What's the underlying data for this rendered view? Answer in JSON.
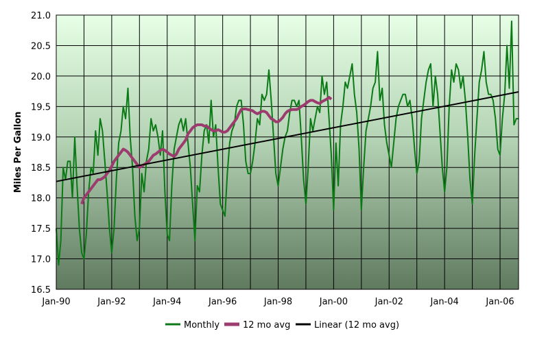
{
  "chart_data": {
    "type": "line",
    "title": "",
    "xlabel": "",
    "ylabel": "Miles Per Gallon",
    "ylim": [
      16.5,
      21.0
    ],
    "yticks": [
      "16.5",
      "17.0",
      "17.5",
      "18.0",
      "18.5",
      "19.0",
      "19.5",
      "20.0",
      "20.5",
      "21.0"
    ],
    "xlim": [
      "1990-01",
      "2006-09"
    ],
    "xticks": [
      "Jan-90",
      "Jan-92",
      "Jan-94",
      "Jan-96",
      "Jan-98",
      "Jan-00",
      "Jan-02",
      "Jan-04",
      "Jan-06"
    ],
    "grid": true,
    "legend_position": "bottom",
    "background": "vertical gradient from light green (top) to dark green (bottom)",
    "colors": {
      "monthly": "#0b7a16",
      "avg": "#9b3b6e",
      "linear": "#000000",
      "grid": "#000000",
      "bg_top": "#e6ffe6",
      "bg_bottom": "#5f7a5f"
    },
    "series": [
      {
        "name": "Monthly",
        "key": "monthly",
        "start": "1990-01",
        "values": [
          17.5,
          16.9,
          17.3,
          18.5,
          18.3,
          18.6,
          18.6,
          18.0,
          19.0,
          18.2,
          17.5,
          17.1,
          17.0,
          17.4,
          18.1,
          18.5,
          18.4,
          19.1,
          18.7,
          19.3,
          19.1,
          18.6,
          18.1,
          17.5,
          17.1,
          17.5,
          18.3,
          18.9,
          19.1,
          19.5,
          19.3,
          19.8,
          19.0,
          18.5,
          17.7,
          17.3,
          17.5,
          18.4,
          18.1,
          18.6,
          18.8,
          19.3,
          19.1,
          19.2,
          19.0,
          18.7,
          19.1,
          18.1,
          17.4,
          17.3,
          18.2,
          18.8,
          19.0,
          19.2,
          19.3,
          19.1,
          19.3,
          18.9,
          18.5,
          17.9,
          17.3,
          18.2,
          18.1,
          18.7,
          19.1,
          19.2,
          18.9,
          19.6,
          19.0,
          19.2,
          18.5,
          17.9,
          17.8,
          17.7,
          18.4,
          18.9,
          19.1,
          19.2,
          19.5,
          19.6,
          19.6,
          19.2,
          18.6,
          18.4,
          18.4,
          18.6,
          18.9,
          19.3,
          19.2,
          19.7,
          19.6,
          19.7,
          20.1,
          19.6,
          19.0,
          18.4,
          18.2,
          18.5,
          18.8,
          19.0,
          19.1,
          19.4,
          19.6,
          19.6,
          19.5,
          19.6,
          19.0,
          18.3,
          17.9,
          18.5,
          19.3,
          19.1,
          19.3,
          19.5,
          19.4,
          20.0,
          19.7,
          19.9,
          19.3,
          18.7,
          17.8,
          18.9,
          18.2,
          19.2,
          19.5,
          19.9,
          19.8,
          20.0,
          20.2,
          19.7,
          19.4,
          18.8,
          17.8,
          18.5,
          19.1,
          19.3,
          19.5,
          19.8,
          19.9,
          20.4,
          19.6,
          19.8,
          19.2,
          18.9,
          18.7,
          18.5,
          18.9,
          19.3,
          19.5,
          19.6,
          19.7,
          19.7,
          19.5,
          19.6,
          19.3,
          18.8,
          18.4,
          18.6,
          19.3,
          19.6,
          19.9,
          20.1,
          20.2,
          19.5,
          20.0,
          19.7,
          19.1,
          18.5,
          18.1,
          18.5,
          19.5,
          20.1,
          19.9,
          20.2,
          20.1,
          19.8,
          20.0,
          19.6,
          19.0,
          18.3,
          17.9,
          18.7,
          19.3,
          19.9,
          20.1,
          20.4,
          19.9,
          19.7,
          19.7,
          19.6,
          19.3,
          18.8,
          18.7,
          19.3,
          19.7,
          20.5,
          19.8,
          20.9,
          19.2,
          19.3,
          19.3
        ]
      },
      {
        "name": "12 mo avg",
        "key": "avg",
        "start": "1990-12",
        "values": [
          17.9,
          18.0,
          18.05,
          18.1,
          18.15,
          18.2,
          18.25,
          18.3,
          18.3,
          18.32,
          18.35,
          18.4,
          18.45,
          18.52,
          18.6,
          18.65,
          18.7,
          18.75,
          18.8,
          18.78,
          18.75,
          18.7,
          18.65,
          18.6,
          18.55,
          18.5,
          18.52,
          18.55,
          18.57,
          18.6,
          18.65,
          18.7,
          18.72,
          18.75,
          18.78,
          18.8,
          18.78,
          18.75,
          18.72,
          18.7,
          18.68,
          18.72,
          18.8,
          18.85,
          18.9,
          18.95,
          19.05,
          19.1,
          19.15,
          19.18,
          19.2,
          19.2,
          19.2,
          19.18,
          19.18,
          19.15,
          19.12,
          19.1,
          19.1,
          19.12,
          19.1,
          19.08,
          19.08,
          19.1,
          19.15,
          19.2,
          19.25,
          19.3,
          19.38,
          19.45,
          19.46,
          19.46,
          19.45,
          19.44,
          19.43,
          19.4,
          19.38,
          19.4,
          19.42,
          19.42,
          19.4,
          19.35,
          19.3,
          19.28,
          19.25,
          19.25,
          19.28,
          19.32,
          19.38,
          19.42,
          19.44,
          19.45,
          19.45,
          19.45,
          19.47,
          19.5,
          19.52,
          19.55,
          19.58,
          19.6,
          19.6,
          19.58,
          19.56,
          19.55,
          19.58,
          19.6,
          19.62,
          19.65,
          19.62
        ]
      },
      {
        "name": "Linear (12 mo avg)",
        "key": "linear",
        "x": [
          "1990-01",
          "2006-09"
        ],
        "values": [
          18.27,
          19.74
        ]
      }
    ]
  }
}
